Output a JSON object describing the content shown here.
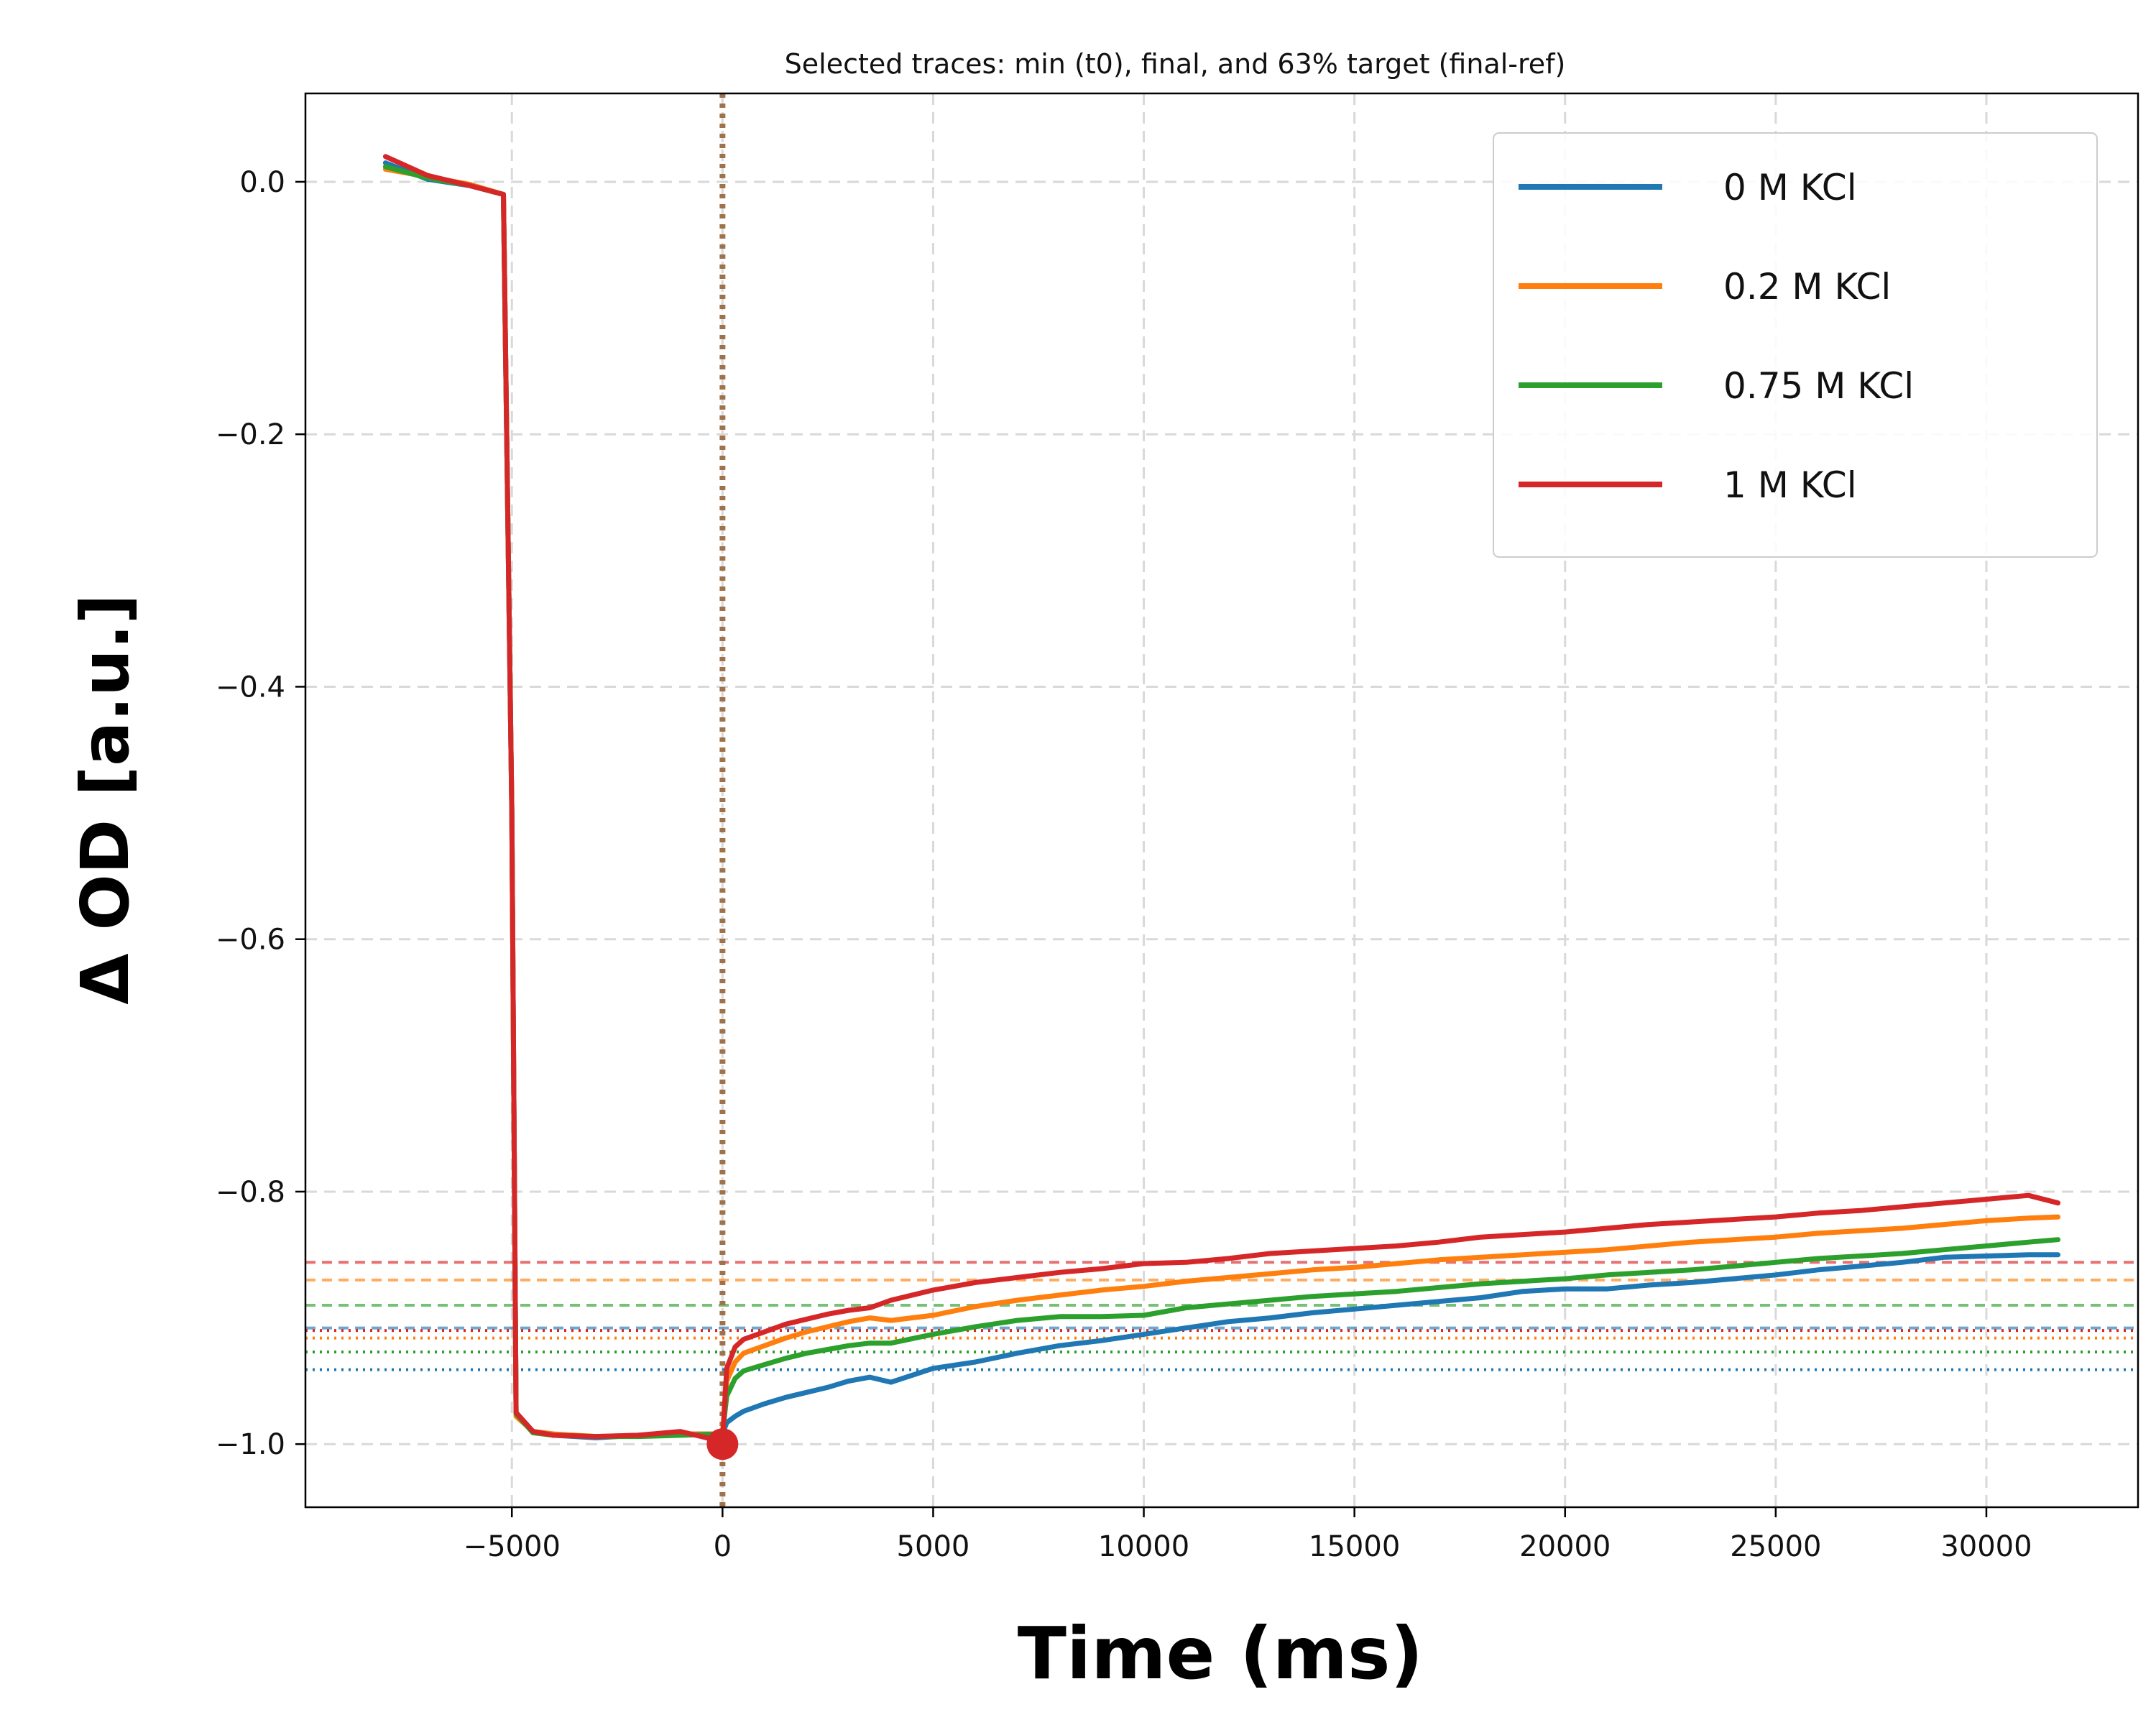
{
  "chart_data": {
    "type": "line",
    "title": "Selected traces: min (t0), final, and 63% target (final-ref)",
    "xlabel": "Time (ms)",
    "ylabel": "Δ OD [a.u.]",
    "xlim": [
      -9900,
      33600
    ],
    "ylim": [
      -1.05,
      0.07
    ],
    "xticks": [
      -5000,
      0,
      5000,
      10000,
      15000,
      20000,
      25000,
      30000
    ],
    "xtick_labels": [
      "−5000",
      "0",
      "5000",
      "10000",
      "15000",
      "20000",
      "25000",
      "30000"
    ],
    "yticks": [
      0.0,
      -0.2,
      -0.4,
      -0.6,
      -0.8,
      -1.0
    ],
    "ytick_labels": [
      "0.0",
      "−0.2",
      "−0.4",
      "−0.6",
      "−0.8",
      "−1.0"
    ],
    "grid": true,
    "legend_position": "top-right",
    "t0_marker": {
      "x": 0,
      "y": -1.0,
      "color": "#d62728"
    },
    "t0_line": {
      "x": 0,
      "color": "#a0724b"
    },
    "series": [
      {
        "name": "0 M KCl",
        "color": "#1f77b4",
        "target_63": -0.908,
        "final_ref": -0.941,
        "x": [
          -8000,
          -7000,
          -6000,
          -5200,
          -5000,
          -4900,
          -4500,
          -4000,
          -3000,
          -2000,
          -1000,
          0,
          100,
          300,
          500,
          1000,
          1500,
          2000,
          2500,
          3000,
          3500,
          4000,
          5000,
          6000,
          7000,
          8000,
          9000,
          10000,
          11000,
          12000,
          13000,
          14000,
          15000,
          16000,
          17000,
          18000,
          19000,
          20000,
          21000,
          22000,
          23000,
          24000,
          25000,
          26000,
          27000,
          28000,
          29000,
          30000,
          31000,
          31700
        ],
        "y": [
          0.015,
          0.002,
          -0.003,
          -0.01,
          -0.5,
          -0.975,
          -0.99,
          -0.993,
          -0.995,
          -0.993,
          -0.992,
          -0.992,
          -0.983,
          -0.978,
          -0.974,
          -0.968,
          -0.963,
          -0.959,
          -0.955,
          -0.95,
          -0.947,
          -0.951,
          -0.94,
          -0.935,
          -0.928,
          -0.922,
          -0.918,
          -0.913,
          -0.908,
          -0.903,
          -0.9,
          -0.896,
          -0.893,
          -0.89,
          -0.887,
          -0.884,
          -0.879,
          -0.877,
          -0.877,
          -0.874,
          -0.872,
          -0.869,
          -0.866,
          -0.862,
          -0.859,
          -0.856,
          -0.852,
          -0.851,
          -0.85,
          -0.85
        ]
      },
      {
        "name": "0.2 M KCl",
        "color": "#ff7f0e",
        "target_63": -0.87,
        "final_ref": -0.916,
        "x": [
          -8000,
          -7000,
          -6000,
          -5200,
          -5000,
          -4900,
          -4500,
          -4000,
          -3000,
          -2000,
          -1000,
          0,
          100,
          300,
          500,
          1000,
          1500,
          2000,
          2500,
          3000,
          3500,
          4000,
          5000,
          6000,
          7000,
          8000,
          9000,
          10000,
          11000,
          12000,
          13000,
          14000,
          15000,
          16000,
          17000,
          18000,
          19000,
          20000,
          21000,
          22000,
          23000,
          24000,
          25000,
          26000,
          27000,
          28000,
          29000,
          30000,
          31000,
          31700
        ],
        "y": [
          0.01,
          0.004,
          -0.002,
          -0.01,
          -0.5,
          -0.978,
          -0.99,
          -0.992,
          -0.994,
          -0.993,
          -0.992,
          -0.992,
          -0.95,
          -0.935,
          -0.928,
          -0.922,
          -0.916,
          -0.911,
          -0.907,
          -0.903,
          -0.9,
          -0.902,
          -0.898,
          -0.891,
          -0.886,
          -0.882,
          -0.878,
          -0.875,
          -0.871,
          -0.868,
          -0.865,
          -0.862,
          -0.86,
          -0.857,
          -0.854,
          -0.852,
          -0.85,
          -0.848,
          -0.846,
          -0.843,
          -0.84,
          -0.838,
          -0.836,
          -0.833,
          -0.831,
          -0.829,
          -0.826,
          -0.823,
          -0.821,
          -0.82
        ]
      },
      {
        "name": "0.75 M KCl",
        "color": "#2ca02c",
        "target_63": -0.89,
        "final_ref": -0.927,
        "x": [
          -8000,
          -7000,
          -6000,
          -5200,
          -5000,
          -4900,
          -4500,
          -4000,
          -3000,
          -2000,
          -1000,
          0,
          100,
          300,
          500,
          1000,
          1500,
          2000,
          2500,
          3000,
          3500,
          4000,
          5000,
          6000,
          7000,
          8000,
          9000,
          10000,
          11000,
          12000,
          13000,
          14000,
          15000,
          16000,
          17000,
          18000,
          19000,
          20000,
          21000,
          22000,
          23000,
          24000,
          25000,
          26000,
          27000,
          28000,
          29000,
          30000,
          31000,
          31700
        ],
        "y": [
          0.012,
          0.003,
          -0.003,
          -0.01,
          -0.5,
          -0.976,
          -0.991,
          -0.993,
          -0.994,
          -0.994,
          -0.993,
          -0.992,
          -0.962,
          -0.948,
          -0.942,
          -0.937,
          -0.932,
          -0.928,
          -0.925,
          -0.922,
          -0.92,
          -0.92,
          -0.913,
          -0.907,
          -0.902,
          -0.899,
          -0.899,
          -0.898,
          -0.892,
          -0.889,
          -0.886,
          -0.883,
          -0.881,
          -0.879,
          -0.876,
          -0.873,
          -0.871,
          -0.869,
          -0.866,
          -0.864,
          -0.862,
          -0.859,
          -0.856,
          -0.853,
          -0.851,
          -0.849,
          -0.846,
          -0.843,
          -0.84,
          -0.838
        ]
      },
      {
        "name": "1 M KCl",
        "color": "#d62728",
        "target_63": -0.856,
        "final_ref": -0.91,
        "x": [
          -8000,
          -7000,
          -6000,
          -5200,
          -5000,
          -4900,
          -4500,
          -4000,
          -3000,
          -2000,
          -1000,
          0,
          100,
          300,
          500,
          1000,
          1500,
          2000,
          2500,
          3000,
          3500,
          4000,
          5000,
          6000,
          7000,
          8000,
          9000,
          10000,
          11000,
          12000,
          13000,
          14000,
          15000,
          16000,
          17000,
          18000,
          19000,
          20000,
          21000,
          22000,
          23000,
          24000,
          25000,
          26000,
          27000,
          28000,
          29000,
          30000,
          31000,
          31700
        ],
        "y": [
          0.02,
          0.005,
          -0.003,
          -0.01,
          -0.5,
          -0.975,
          -0.99,
          -0.993,
          -0.994,
          -0.993,
          -0.99,
          -0.998,
          -0.94,
          -0.923,
          -0.917,
          -0.911,
          -0.905,
          -0.901,
          -0.897,
          -0.894,
          -0.892,
          -0.886,
          -0.878,
          -0.872,
          -0.868,
          -0.864,
          -0.861,
          -0.857,
          -0.856,
          -0.853,
          -0.849,
          -0.847,
          -0.845,
          -0.843,
          -0.84,
          -0.836,
          -0.834,
          -0.832,
          -0.829,
          -0.826,
          -0.824,
          -0.822,
          -0.82,
          -0.817,
          -0.815,
          -0.812,
          -0.809,
          -0.806,
          -0.803,
          -0.809
        ]
      }
    ]
  }
}
